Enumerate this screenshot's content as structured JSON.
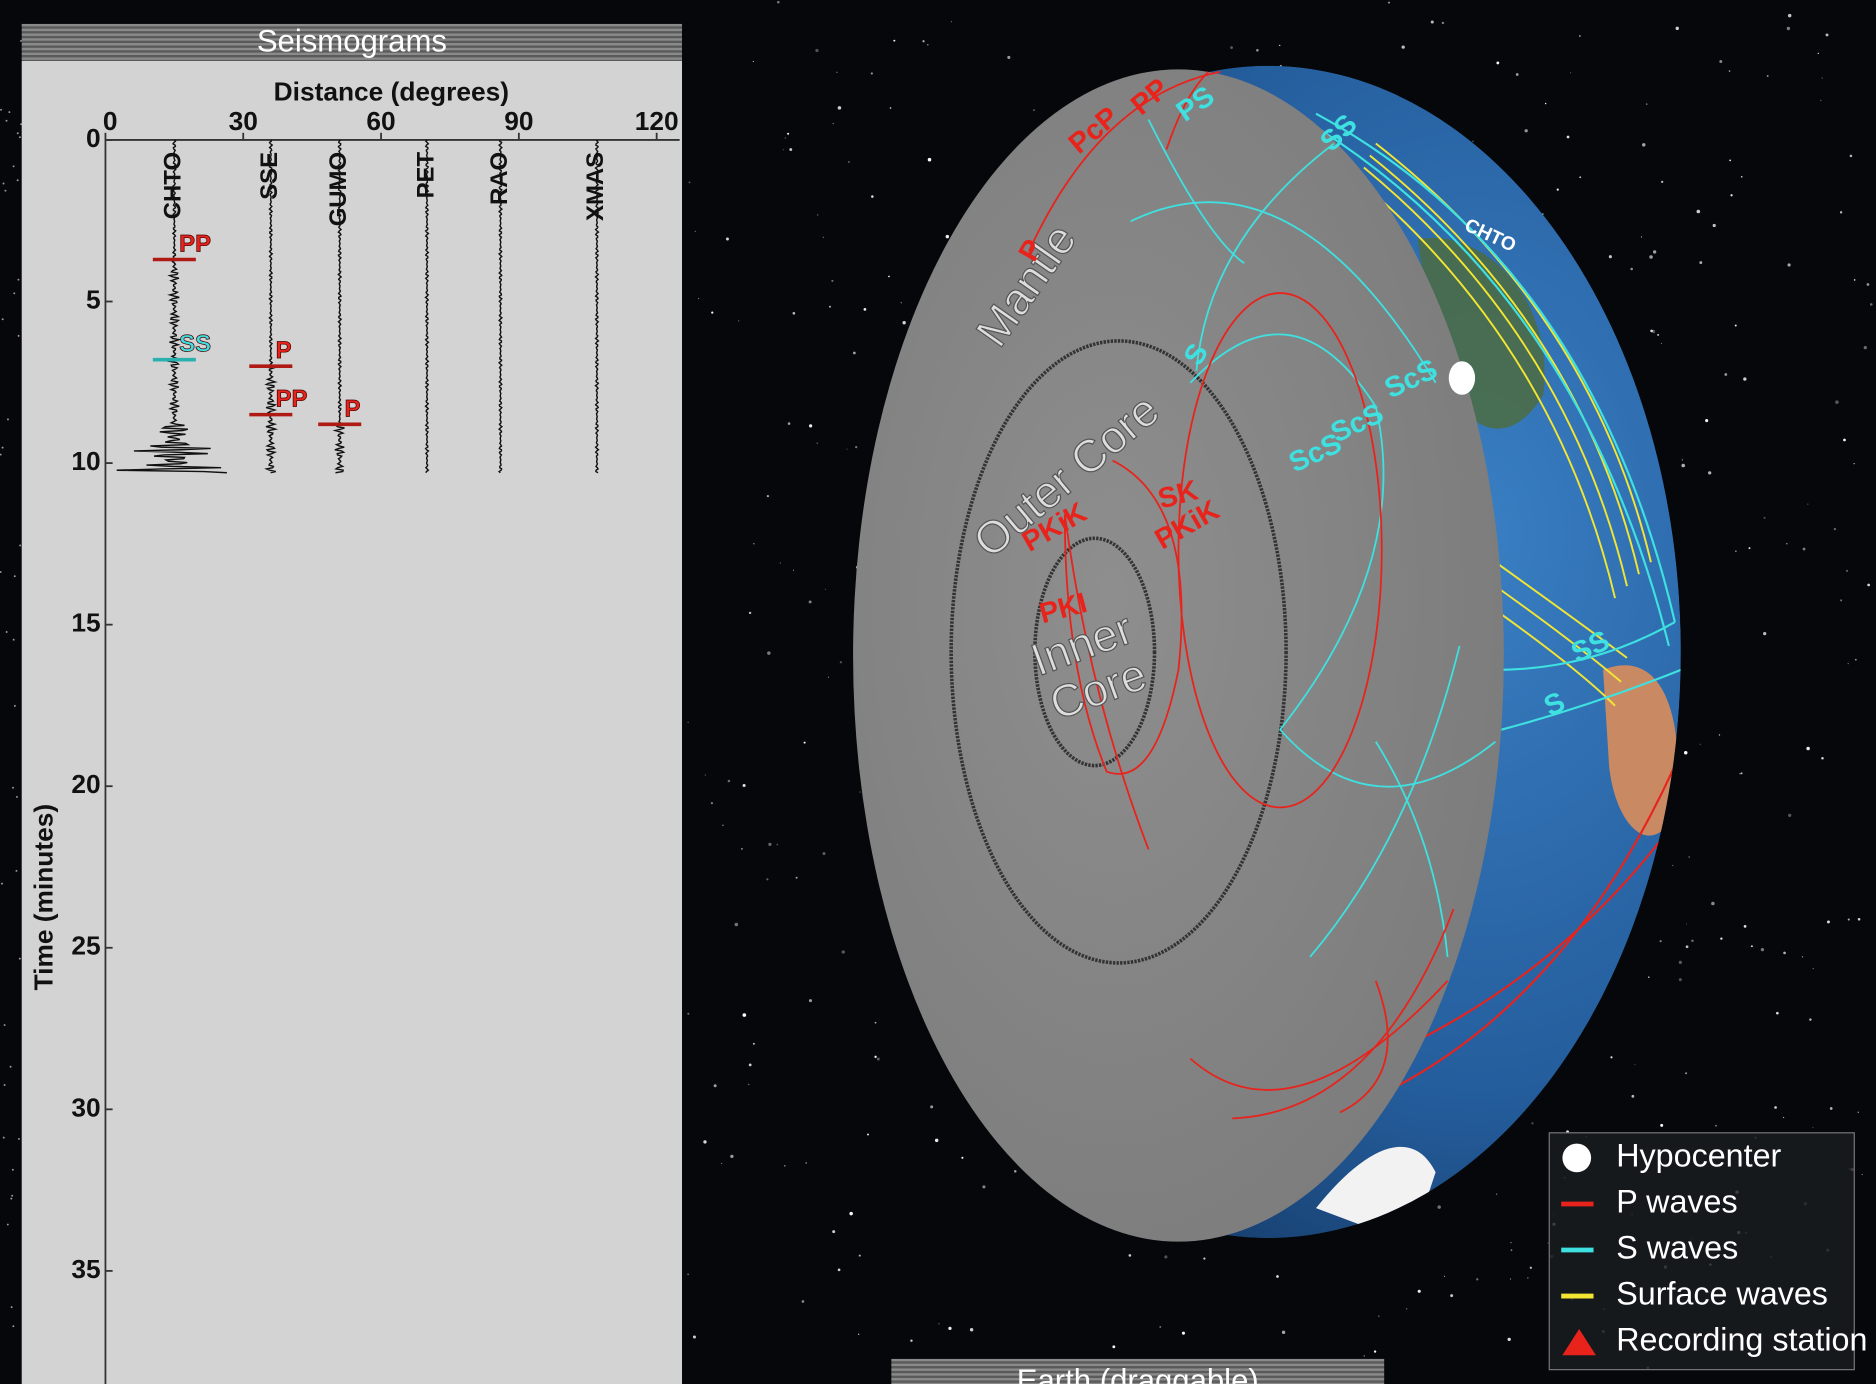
{
  "seismograms": {
    "title": "Seismograms"
  },
  "chart_data": {
    "type": "seismogram",
    "xlabel": "Distance (degrees)",
    "ylabel": "Time (minutes)",
    "xlim": [
      0,
      125
    ],
    "xticks": [
      0,
      30,
      60,
      90,
      120
    ],
    "ylim": [
      0,
      38.5
    ],
    "yticks": [
      0,
      5,
      10,
      15,
      20,
      25,
      30,
      35
    ],
    "elapsed": 10.3,
    "stations": [
      {
        "name": "CHTO",
        "distance": 15,
        "picks": [
          {
            "phase": "PP",
            "time": 3.7,
            "color": "#e8231c"
          },
          {
            "phase": "SS",
            "time": 6.8,
            "color": "#3fe0e0"
          }
        ]
      },
      {
        "name": "SSE",
        "distance": 36,
        "picks": [
          {
            "phase": "P",
            "time": 7.0,
            "color": "#e8231c"
          },
          {
            "phase": "PP",
            "time": 8.5,
            "color": "#e8231c"
          }
        ]
      },
      {
        "name": "GUMO",
        "distance": 51,
        "picks": [
          {
            "phase": "P",
            "time": 8.8,
            "color": "#e8231c"
          }
        ]
      },
      {
        "name": "PET",
        "distance": 70,
        "picks": []
      },
      {
        "name": "RAO",
        "distance": 86,
        "picks": []
      },
      {
        "name": "XMAS",
        "distance": 107,
        "picks": []
      }
    ]
  },
  "earth": {
    "title": "Earth  (draggable)",
    "layers": {
      "mantle": "Mantle",
      "outer_core": "Outer Core",
      "inner_core": "Inner Core"
    },
    "station_label": "CHTO",
    "phase_labels": [
      {
        "text": "PcP",
        "color": "#e8231c"
      },
      {
        "text": "PP",
        "color": "#e8231c"
      },
      {
        "text": "PS",
        "color": "#3fe0e0"
      },
      {
        "text": "SS",
        "color": "#3fe0e0"
      },
      {
        "text": "P",
        "color": "#e8231c"
      },
      {
        "text": "S",
        "color": "#3fe0e0"
      },
      {
        "text": "ScS",
        "color": "#3fe0e0"
      },
      {
        "text": "ScS",
        "color": "#3fe0e0"
      },
      {
        "text": "ScS",
        "color": "#3fe0e0"
      },
      {
        "text": "PKiK",
        "color": "#e8231c"
      },
      {
        "text": "SK",
        "color": "#e8231c"
      },
      {
        "text": "PKiK",
        "color": "#e8231c"
      },
      {
        "text": "PKI",
        "color": "#e8231c"
      },
      {
        "text": "SS",
        "color": "#3fe0e0"
      },
      {
        "text": "S",
        "color": "#3fe0e0"
      }
    ]
  },
  "legend": {
    "items": [
      {
        "name": "Hypocenter",
        "color": "#ffffff",
        "symbol": "circle"
      },
      {
        "name": "P waves",
        "color": "#e8231c",
        "symbol": "line"
      },
      {
        "name": "S waves",
        "color": "#3fe0e0",
        "symbol": "line"
      },
      {
        "name": "Surface waves",
        "color": "#f2e633",
        "symbol": "line"
      },
      {
        "name": "Recording station",
        "color": "#e8231c",
        "symbol": "triangle"
      }
    ]
  }
}
